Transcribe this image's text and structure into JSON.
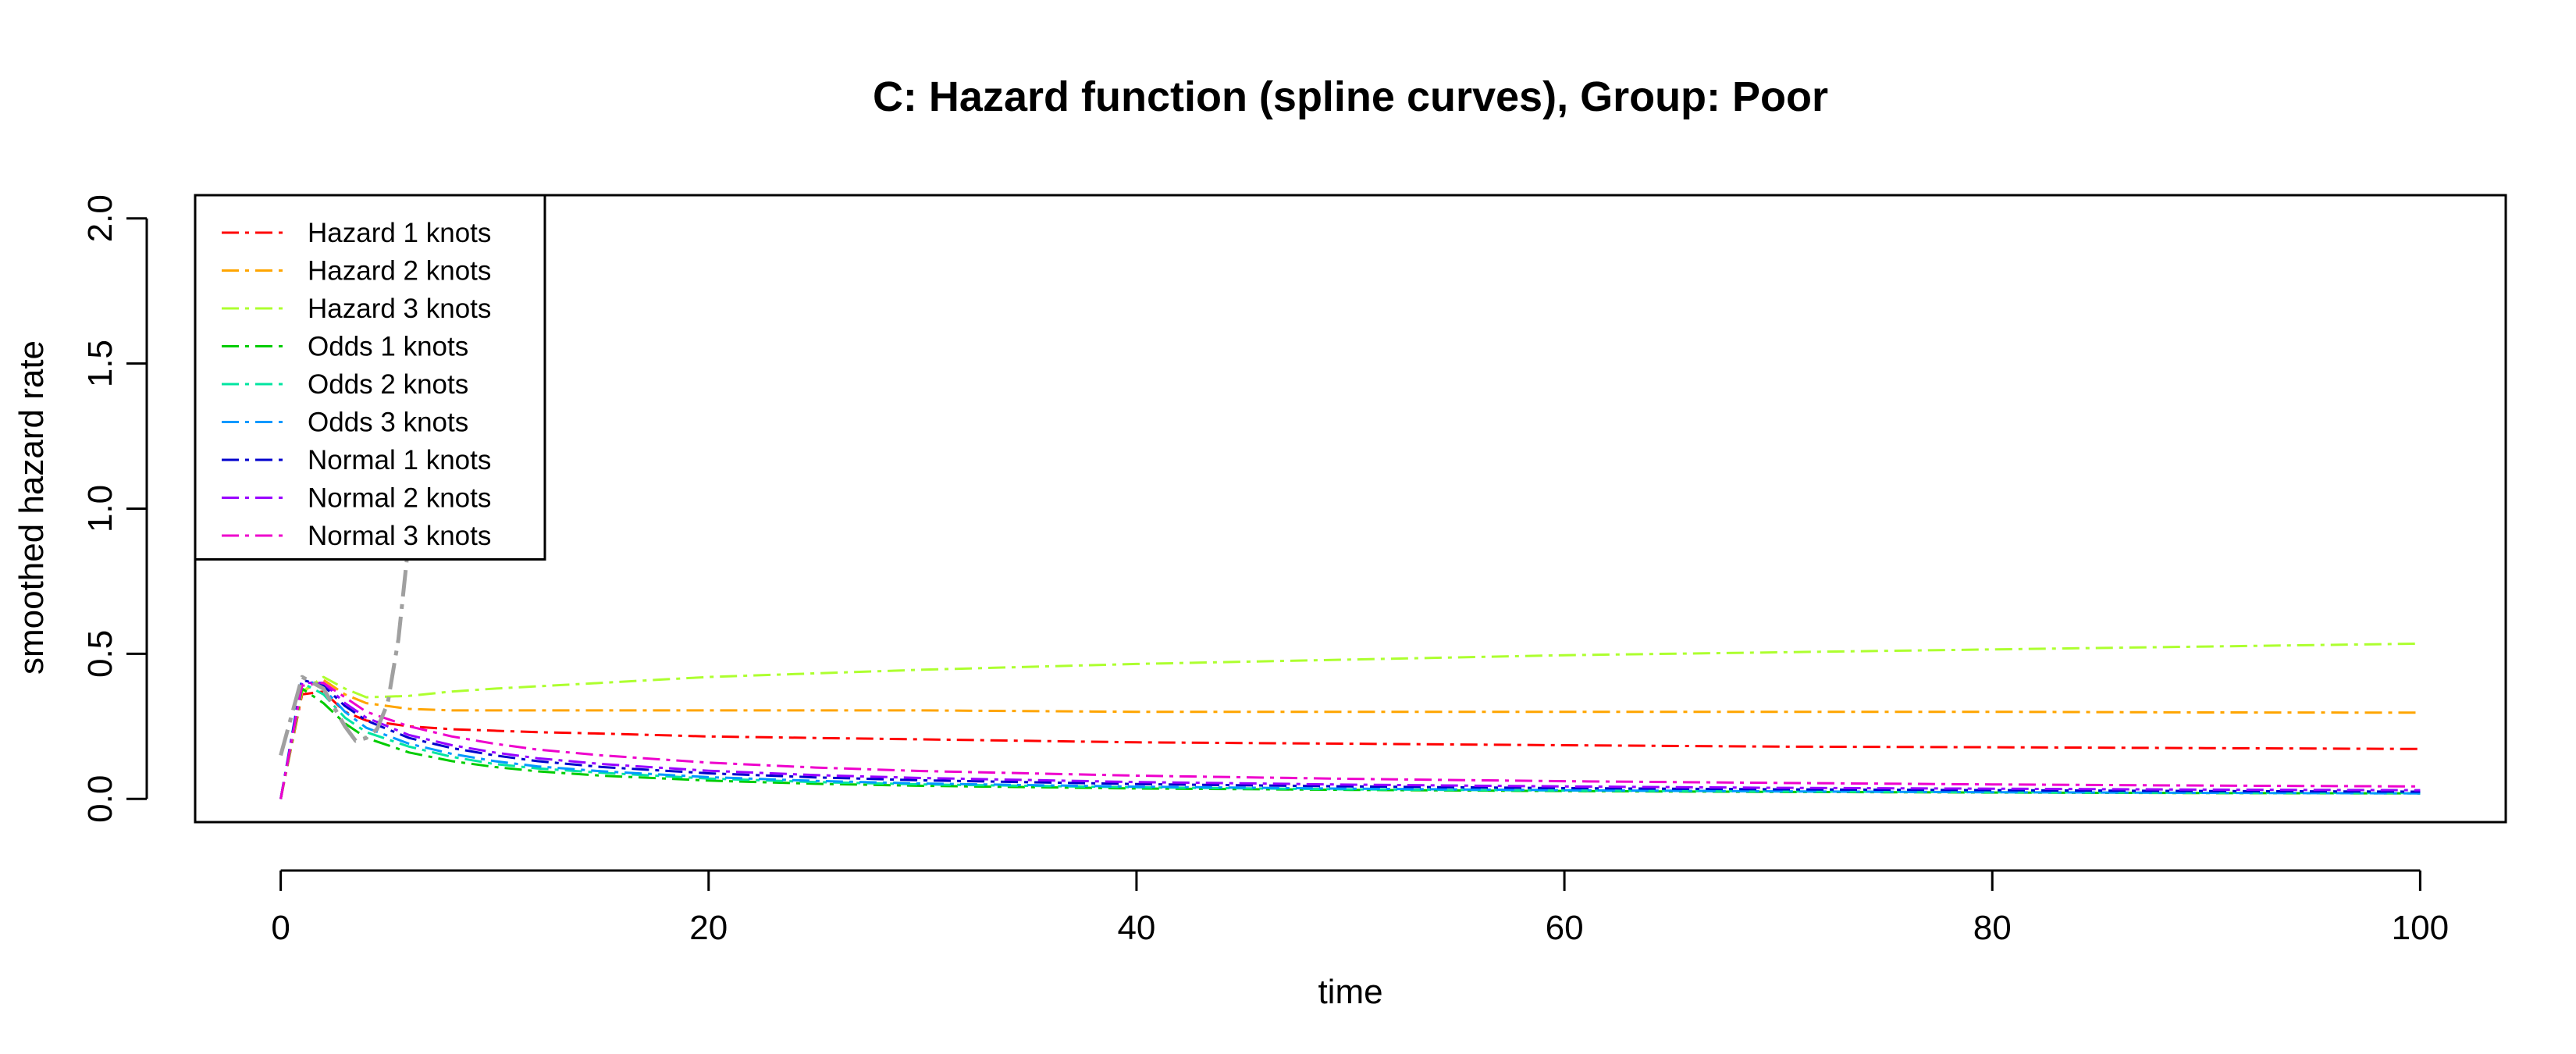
{
  "chart_data": {
    "type": "line",
    "title": "C: Hazard function (spline curves), Group: Poor",
    "xlabel": "time",
    "ylabel": "smoothed hazard rate",
    "xlim": [
      -4,
      104
    ],
    "ylim": [
      -0.08,
      2.08
    ],
    "xticks": [
      "0",
      "20",
      "40",
      "60",
      "80",
      "100"
    ],
    "yticks": [
      "0.0",
      "0.5",
      "1.0",
      "1.5",
      "2.0"
    ],
    "grid": false,
    "legend_position": "top-left",
    "series": [
      {
        "name": "Hazard 1 knots",
        "color": "#ff0000",
        "x": [
          0,
          1,
          2,
          3,
          4,
          6,
          8,
          10,
          12,
          15,
          20,
          25,
          30,
          40,
          50,
          60,
          70,
          80,
          90,
          100
        ],
        "y": [
          0.0,
          0.36,
          0.37,
          0.3,
          0.27,
          0.25,
          0.24,
          0.235,
          0.23,
          0.225,
          0.215,
          0.21,
          0.205,
          0.195,
          0.19,
          0.185,
          0.18,
          0.178,
          0.175,
          0.172
        ]
      },
      {
        "name": "Hazard 2 knots",
        "color": "#ffa500",
        "x": [
          0,
          1,
          2,
          3,
          4,
          6,
          8,
          10,
          15,
          20,
          30,
          40,
          50,
          60,
          70,
          80,
          90,
          100
        ],
        "y": [
          0.0,
          0.37,
          0.41,
          0.36,
          0.33,
          0.31,
          0.305,
          0.305,
          0.305,
          0.305,
          0.305,
          0.3,
          0.3,
          0.3,
          0.3,
          0.3,
          0.298,
          0.297
        ]
      },
      {
        "name": "Hazard 3 knots",
        "color": "#adff2f",
        "x": [
          0,
          1,
          2,
          3,
          4,
          6,
          8,
          10,
          15,
          20,
          30,
          40,
          50,
          60,
          70,
          80,
          90,
          100
        ],
        "y": [
          0.0,
          0.37,
          0.42,
          0.38,
          0.35,
          0.355,
          0.37,
          0.38,
          0.4,
          0.42,
          0.445,
          0.465,
          0.48,
          0.495,
          0.505,
          0.515,
          0.525,
          0.535
        ]
      },
      {
        "name": "Odds 1 knots",
        "color": "#00cc00",
        "x": [
          0,
          1,
          2,
          3,
          4,
          6,
          8,
          10,
          12,
          15,
          20,
          25,
          30,
          40,
          50,
          60,
          70,
          80,
          90,
          100
        ],
        "y": [
          0.0,
          0.38,
          0.33,
          0.26,
          0.21,
          0.16,
          0.13,
          0.11,
          0.095,
          0.08,
          0.063,
          0.052,
          0.045,
          0.036,
          0.031,
          0.027,
          0.024,
          0.022,
          0.02,
          0.019
        ]
      },
      {
        "name": "Odds 2 knots",
        "color": "#00e5a0",
        "x": [
          0,
          1,
          2,
          3,
          4,
          6,
          8,
          10,
          12,
          15,
          20,
          25,
          30,
          40,
          50,
          60,
          70,
          80,
          90,
          100
        ],
        "y": [
          0.0,
          0.4,
          0.36,
          0.28,
          0.23,
          0.18,
          0.145,
          0.12,
          0.105,
          0.09,
          0.07,
          0.058,
          0.05,
          0.04,
          0.033,
          0.029,
          0.026,
          0.023,
          0.021,
          0.02
        ]
      },
      {
        "name": "Odds 3 knots",
        "color": "#0099ff",
        "x": [
          0,
          1,
          2,
          3,
          4,
          6,
          8,
          10,
          12,
          15,
          20,
          25,
          30,
          40,
          50,
          60,
          70,
          80,
          90,
          100
        ],
        "y": [
          0.0,
          0.42,
          0.38,
          0.3,
          0.245,
          0.19,
          0.155,
          0.13,
          0.112,
          0.095,
          0.075,
          0.062,
          0.053,
          0.042,
          0.035,
          0.03,
          0.026,
          0.023,
          0.021,
          0.019
        ]
      },
      {
        "name": "Normal 1 knots",
        "color": "#0000cc",
        "x": [
          0,
          1,
          2,
          3,
          4,
          6,
          8,
          10,
          12,
          15,
          20,
          25,
          30,
          40,
          50,
          60,
          70,
          80,
          90,
          100
        ],
        "y": [
          0.0,
          0.41,
          0.39,
          0.32,
          0.27,
          0.21,
          0.175,
          0.15,
          0.13,
          0.11,
          0.088,
          0.074,
          0.064,
          0.051,
          0.043,
          0.037,
          0.033,
          0.03,
          0.027,
          0.025
        ]
      },
      {
        "name": "Normal 2 knots",
        "color": "#9900ff",
        "x": [
          0,
          1,
          2,
          3,
          4,
          6,
          8,
          10,
          12,
          15,
          20,
          25,
          30,
          40,
          50,
          60,
          70,
          80,
          90,
          100
        ],
        "y": [
          0.0,
          0.4,
          0.4,
          0.33,
          0.28,
          0.22,
          0.185,
          0.16,
          0.14,
          0.12,
          0.097,
          0.082,
          0.072,
          0.058,
          0.049,
          0.043,
          0.038,
          0.035,
          0.032,
          0.03
        ]
      },
      {
        "name": "Normal 3 knots",
        "color": "#ee00cc",
        "x": [
          0,
          1,
          2,
          3,
          4,
          6,
          8,
          10,
          12,
          15,
          20,
          25,
          30,
          40,
          50,
          60,
          70,
          80,
          90,
          100
        ],
        "y": [
          0.0,
          0.39,
          0.4,
          0.35,
          0.3,
          0.25,
          0.215,
          0.19,
          0.17,
          0.15,
          0.125,
          0.108,
          0.096,
          0.08,
          0.069,
          0.061,
          0.055,
          0.05,
          0.046,
          0.043
        ]
      },
      {
        "name": "",
        "color": "#a0a0a0",
        "in_legend": false,
        "x": [
          0,
          1,
          2,
          3,
          3.5,
          4,
          4.5,
          5,
          5.5,
          6,
          6.3,
          6.6,
          6.8
        ],
        "y": [
          0.15,
          0.42,
          0.38,
          0.25,
          0.2,
          0.21,
          0.24,
          0.33,
          0.55,
          0.9,
          1.2,
          1.5,
          1.8
        ]
      }
    ]
  }
}
